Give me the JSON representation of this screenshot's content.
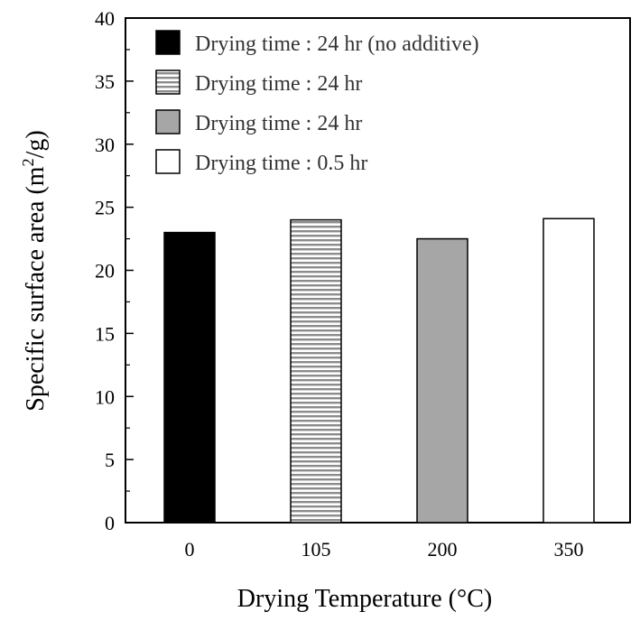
{
  "chart_data": {
    "type": "bar",
    "categories": [
      "0",
      "105",
      "200",
      "350"
    ],
    "series": [
      {
        "name": "Drying time : 24 hr (no additive)",
        "category": "0",
        "value": 23.0,
        "fill": "solid-black",
        "color": "#000000"
      },
      {
        "name": "Drying time : 24 hr",
        "category": "105",
        "value": 24.0,
        "fill": "horizontal-stripes",
        "color": "#888888"
      },
      {
        "name": "Drying time : 24 hr",
        "category": "200",
        "value": 22.5,
        "fill": "solid-gray",
        "color": "#a6a6a6"
      },
      {
        "name": "Drying time : 0.5 hr",
        "category": "350",
        "value": 24.1,
        "fill": "white",
        "color": "#ffffff"
      }
    ],
    "values": [
      23.0,
      24.0,
      22.5,
      24.1
    ],
    "xlabel": "Drying Temperature (°C)",
    "ylabel_prefix": "Specific surface area (m",
    "ylabel_sup": "2",
    "ylabel_suffix": "/g)",
    "ylim": [
      0,
      40
    ],
    "yticks": [
      0,
      5,
      10,
      15,
      20,
      25,
      30,
      35,
      40
    ],
    "grid": false,
    "legend_position": "top-left"
  }
}
